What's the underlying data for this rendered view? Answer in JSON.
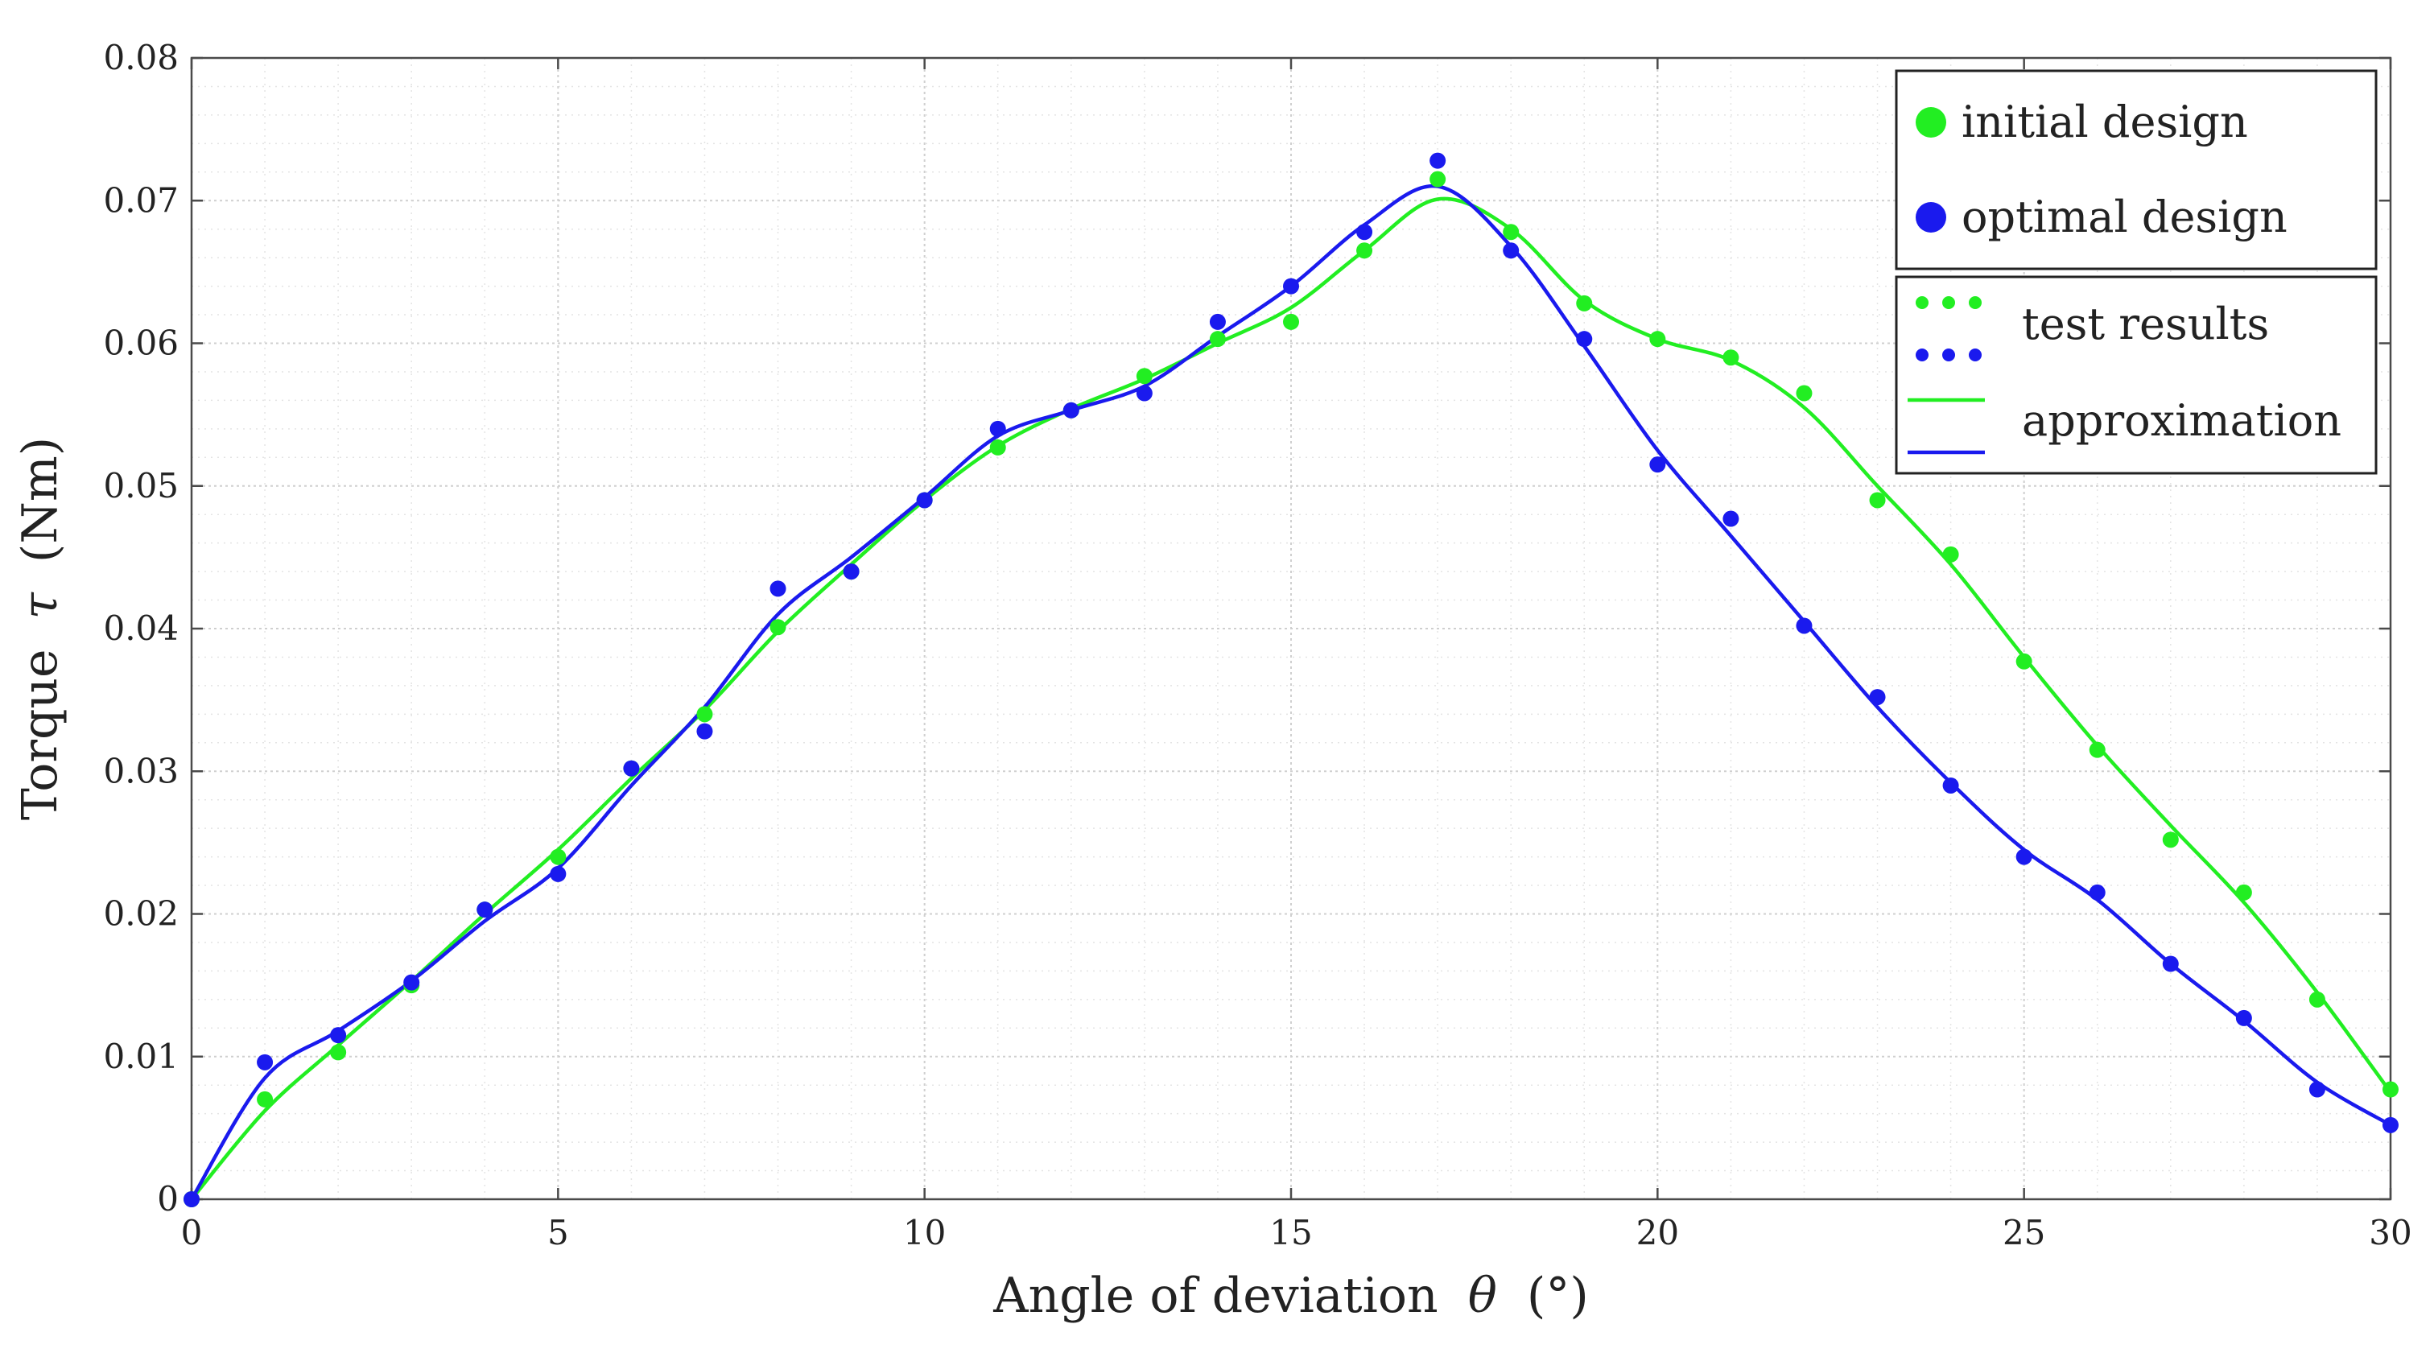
{
  "chart_data": {
    "type": "line",
    "title": "",
    "xlabel_text": "Angle of deviation",
    "xlabel_symbol": "θ",
    "xlabel_unit": "(°)",
    "ylabel_text": "Torque",
    "ylabel_symbol": "τ",
    "ylabel_unit": "(Nm)",
    "xlim": [
      0,
      30
    ],
    "ylim": [
      0,
      0.08
    ],
    "xticks": [
      0,
      5,
      10,
      15,
      20,
      25,
      30
    ],
    "yticks": [
      0,
      0.01,
      0.02,
      0.03,
      0.04,
      0.05,
      0.06,
      0.07,
      0.08
    ],
    "ytick_labels": [
      "0",
      "0.01",
      "0.02",
      "0.03",
      "0.04",
      "0.05",
      "0.06",
      "0.07",
      "0.08"
    ],
    "grid": true,
    "legend_position": "top-right",
    "legend": {
      "designs": [
        {
          "label": "initial design",
          "color": "#22ee22"
        },
        {
          "label": "optimal design",
          "color": "#1a1aee"
        }
      ],
      "styles": [
        {
          "label": "test results"
        },
        {
          "label": "approximation"
        }
      ]
    },
    "series": [
      {
        "name": "initial design",
        "color": "#22ee22",
        "x": [
          0,
          1,
          2,
          3,
          4,
          5,
          6,
          7,
          8,
          9,
          10,
          11,
          12,
          13,
          14,
          15,
          16,
          17,
          18,
          19,
          20,
          21,
          22,
          23,
          24,
          25,
          26,
          27,
          28,
          29,
          30
        ],
        "test_results": [
          0,
          0.007,
          0.0103,
          0.015,
          0.0203,
          0.024,
          0.0302,
          0.034,
          0.0401,
          0.044,
          0.049,
          0.0527,
          0.0553,
          0.0577,
          0.0603,
          0.0615,
          0.0665,
          0.0715,
          0.0678,
          0.0628,
          0.0603,
          0.059,
          0.0565,
          0.049,
          0.0452,
          0.0377,
          0.0315,
          0.0252,
          0.0215,
          0.014,
          0.0077
        ],
        "approximation": [
          0,
          0.0062,
          0.0108,
          0.0153,
          0.02,
          0.0245,
          0.0295,
          0.0343,
          0.0398,
          0.0445,
          0.049,
          0.0528,
          0.0554,
          0.0575,
          0.06,
          0.0625,
          0.0665,
          0.0701,
          0.068,
          0.063,
          0.0603,
          0.0588,
          0.0555,
          0.05,
          0.0445,
          0.038,
          0.0318,
          0.0262,
          0.0208,
          0.0145,
          0.0075
        ]
      },
      {
        "name": "optimal design",
        "color": "#1a1aee",
        "x": [
          0,
          1,
          2,
          3,
          4,
          5,
          6,
          7,
          8,
          9,
          10,
          11,
          12,
          13,
          14,
          15,
          16,
          17,
          18,
          19,
          20,
          21,
          22,
          23,
          24,
          25,
          26,
          27,
          28,
          29,
          30
        ],
        "test_results": [
          0,
          0.0096,
          0.0115,
          0.0152,
          0.0203,
          0.0228,
          0.0302,
          0.0328,
          0.0428,
          0.044,
          0.049,
          0.054,
          0.0553,
          0.0565,
          0.0615,
          0.064,
          0.0678,
          0.0728,
          0.0665,
          0.0603,
          0.0515,
          0.0477,
          0.0402,
          0.0352,
          0.029,
          0.024,
          0.0215,
          0.0165,
          0.0127,
          0.0077,
          0.0052
        ],
        "approximation": [
          0,
          0.0085,
          0.0118,
          0.0153,
          0.0195,
          0.0232,
          0.029,
          0.0345,
          0.041,
          0.045,
          0.0492,
          0.0535,
          0.0553,
          0.057,
          0.0605,
          0.064,
          0.0683,
          0.071,
          0.0668,
          0.0598,
          0.0525,
          0.0465,
          0.0405,
          0.0345,
          0.0292,
          0.0245,
          0.021,
          0.0165,
          0.0125,
          0.0082,
          0.0052
        ]
      }
    ]
  }
}
